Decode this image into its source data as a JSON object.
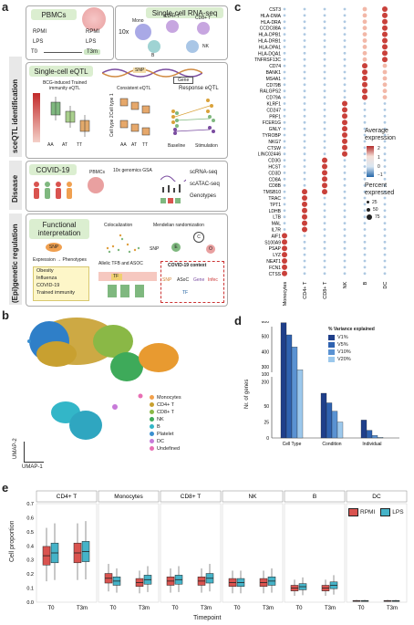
{
  "panels": {
    "a": "a",
    "b": "b",
    "c": "c",
    "d": "d",
    "e": "e"
  },
  "panel_a": {
    "sidebar": [
      "sceQTL identification",
      "Disease",
      "(Epi)genetic regulation"
    ],
    "pbmcs": {
      "title": "PBMCs",
      "rpmi": "RPMI",
      "lps": "LPS",
      "t0": "T0",
      "t3m": "T3m"
    },
    "scrna": {
      "title": "Single-cell RNA-seq",
      "mono": "Mono",
      "cd4": "CD4+ T",
      "cd8": "CD8+ T",
      "b": "B",
      "nk": "NK",
      "tenx": "10x"
    },
    "sceqtl": {
      "title": "Single-cell eQTL",
      "snp": "SNP",
      "gene": "Gene",
      "bcg": "BCG-induced Trained immunity eQTL",
      "gene_expr": "Gene expression",
      "fold_change": "Fold change",
      "consistent": "Consistent eQTL",
      "response": "Response eQTL",
      "ct1": "Cell type 1",
      "ct2": "Cell type 2",
      "baseline": "Baseline",
      "stimulation": "Stimulation",
      "genotypes": [
        "AA",
        "AT",
        "TT"
      ]
    },
    "disease": {
      "title": "COVID-19",
      "pbmcs": "PBMCs",
      "tenx": "10x genomics GSA",
      "scrnaseq": "scRNA-seq",
      "scatac": "scATAC-seq",
      "genotypes": "Genotypes"
    },
    "func": {
      "title": "Functional interpretation",
      "snp": "SNP",
      "expr": "Expression → Phenotypes",
      "coloc": "Colocalization",
      "mr": "Mendelian randomization",
      "mr_snp": "SNP",
      "mr_e": "E",
      "mr_c": "C",
      "mr_o": "O",
      "bullets": [
        "Obesity",
        "Influenza",
        "COVID-19",
        "Trained immunity"
      ],
      "allelic": "Allelic TFB and ASOC",
      "tf": "TF",
      "covid_ctx": "COVID-19 context",
      "chain": [
        "SNP",
        "ASoC",
        "Gene",
        "Infec"
      ],
      "tf2": "TF"
    }
  },
  "panel_b": {
    "xlabel": "UMAP-1",
    "ylabel": "UMAP-2",
    "legend": [
      {
        "label": "Monocytes",
        "color": "#f2a04a"
      },
      {
        "label": "CD4+ T",
        "color": "#c8a030"
      },
      {
        "label": "CD8+ T",
        "color": "#8ab846"
      },
      {
        "label": "NK",
        "color": "#3eaa5a"
      },
      {
        "label": "B",
        "color": "#33b6c8"
      },
      {
        "label": "Platelet",
        "color": "#3a8fd0"
      },
      {
        "label": "DC",
        "color": "#c77ad8"
      },
      {
        "label": "Undefined",
        "color": "#e86fb4"
      }
    ]
  },
  "panel_c": {
    "genes": [
      "CST3",
      "HLA-DMA",
      "HLA-DRA",
      "CCDC88A",
      "HLA-DPB1",
      "HLA-DRB1",
      "HLA-DPA1",
      "HLA-DQA1",
      "TNFRSF13C",
      "CD74",
      "BANK1",
      "MS4A1",
      "CD79B",
      "RALGPS2",
      "CD79A",
      "KLRF1",
      "CD247",
      "PRF1",
      "FCER1G",
      "GNLY",
      "TYROBP",
      "NKG7",
      "CTSW",
      "LINC02446",
      "CD3G",
      "HCST",
      "CD3D",
      "CD8A",
      "CD8B",
      "TMSB10",
      "TRAC",
      "TPT1",
      "LDHB",
      "LTB",
      "MAL",
      "IL7R",
      "AIF1",
      "S100A9",
      "PSAP",
      "LYZ",
      "NEAT1",
      "FCN1",
      "CTSS"
    ],
    "celltypes": [
      "Monocytes",
      "CD4+ T",
      "CD8+ T",
      "NK",
      "B",
      "DC"
    ],
    "legend": {
      "title1": "Average",
      "title2": "expression",
      "ticks": [
        "2",
        "1",
        "0",
        "−1"
      ],
      "pct_title1": "Percent",
      "pct_title2": "expressed",
      "pct_values": [
        "25",
        "50",
        "75"
      ]
    }
  },
  "panel_d": {
    "ylabel": "Nr. of genes",
    "legend_title": "% Variance explained",
    "legend": [
      {
        "label": "V1%",
        "color": "#1f3f8a"
      },
      {
        "label": "V5%",
        "color": "#2f62b0"
      },
      {
        "label": "V10%",
        "color": "#5a92d2"
      },
      {
        "label": "V20%",
        "color": "#9cc8ec"
      }
    ],
    "y_ticks": [
      "600",
      "500",
      "400",
      "300",
      "200",
      "100",
      "50",
      "25",
      "0"
    ]
  },
  "panel_e": {
    "ylabel": "Cell proportion",
    "xlabel": "Timepoint",
    "y_ticks": [
      "0.7",
      "0.6",
      "0.5",
      "0.4",
      "0.3",
      "0.2",
      "0.1",
      "0.0"
    ],
    "legend": [
      {
        "label": "RPMI",
        "color": "#d9534f"
      },
      {
        "label": "LPS",
        "color": "#45b3c8"
      }
    ],
    "timepoints": [
      "T0",
      "T3m"
    ]
  },
  "chart_data": [
    {
      "type": "bar",
      "panel": "d",
      "ylabel": "Nr. of genes",
      "categories": [
        "Cell Type",
        "Condition",
        "Individual"
      ],
      "series": [
        {
          "name": "V1%",
          "values": [
            590,
            70,
            28
          ]
        },
        {
          "name": "V5%",
          "values": [
            510,
            55,
            12
          ]
        },
        {
          "name": "V10%",
          "values": [
            430,
            42,
            4
          ]
        },
        {
          "name": "V20%",
          "values": [
            280,
            25,
            1
          ]
        }
      ]
    },
    {
      "type": "box",
      "panel": "e",
      "ylabel": "Cell proportion",
      "xlabel": "Timepoint",
      "ylim": [
        0,
        0.7
      ],
      "facets": [
        "CD4+ T",
        "Monocytes",
        "CD8+ T",
        "NK",
        "B",
        "DC"
      ],
      "series": [
        {
          "name": "RPMI",
          "medians": {
            "CD4+ T": [
              0.33,
              0.35
            ],
            "Monocytes": [
              0.17,
              0.14
            ],
            "CD8+ T": [
              0.15,
              0.15
            ],
            "NK": [
              0.14,
              0.14
            ],
            "B": [
              0.1,
              0.1
            ],
            "DC": [
              0.01,
              0.01
            ]
          }
        },
        {
          "name": "LPS",
          "medians": {
            "CD4+ T": [
              0.35,
              0.36
            ],
            "Monocytes": [
              0.15,
              0.16
            ],
            "CD8+ T": [
              0.16,
              0.17
            ],
            "NK": [
              0.14,
              0.15
            ],
            "B": [
              0.11,
              0.12
            ],
            "DC": [
              0.01,
              0.01
            ]
          }
        }
      ]
    }
  ]
}
